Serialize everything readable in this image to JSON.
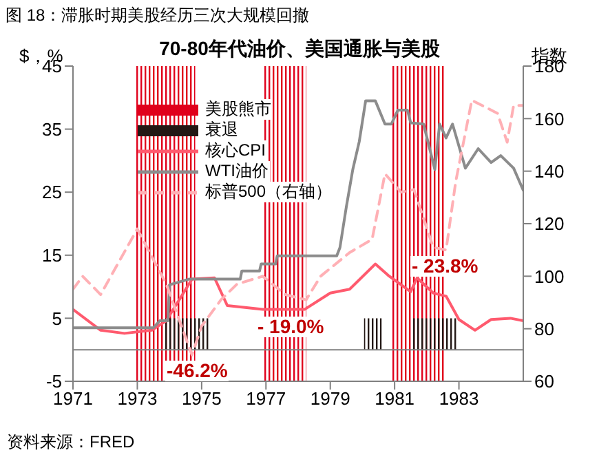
{
  "chart_data": {
    "type": "line",
    "title": "图 18：滞胀时期美股经历三次大规模回撤",
    "subtitle": "70-80年代油价、美国通胀与美股",
    "ylabel": "$，%",
    "y2label": "指数",
    "xlim": [
      1971,
      1985
    ],
    "xticks": [
      1971,
      1973,
      1975,
      1977,
      1979,
      1981,
      1983
    ],
    "ylim": [
      -5,
      45
    ],
    "yticks": [
      -5,
      5,
      15,
      25,
      35,
      45
    ],
    "y2lim": [
      60,
      180
    ],
    "y2ticks": [
      60,
      80,
      100,
      120,
      140,
      160,
      180
    ],
    "grid": false,
    "legend": "top left",
    "marker": "none",
    "bands": [
      {
        "axis": "x",
        "from": 1972.97,
        "to": 1974.8,
        "label": "美股熊市",
        "color": "#e0001b"
      },
      {
        "axis": "x",
        "from": 1976.9,
        "to": 1978.25,
        "color": "#e0001b"
      },
      {
        "axis": "x",
        "from": 1980.9,
        "to": 1982.6,
        "color": "#e0001b"
      }
    ],
    "ref_lines": [
      {
        "axis": "y",
        "value": 0,
        "color": "#808080"
      }
    ],
    "series": [
      {
        "name": "衰退",
        "type": "area",
        "color": "#231815",
        "x": [
          1973.8,
          1975.25,
          1975.26,
          1980.05,
          1980.6,
          1980.61,
          1981.55,
          1982.95
        ],
        "values": [
          5,
          5,
          null,
          5,
          5,
          null,
          5,
          5
        ]
      },
      {
        "name": "核心CPI",
        "color": "#ff5a6e",
        "line_style": "solid",
        "x": [
          1971.0,
          1971.86,
          1972.6,
          1973.45,
          1973.9,
          1974.7,
          1975.4,
          1975.8,
          1976.9,
          1978.2,
          1979.0,
          1979.6,
          1980.4,
          1980.8,
          1981.5,
          1981.7,
          1982.2,
          1982.6,
          1983.0,
          1983.5,
          1984.0,
          1984.6,
          1985.0
        ],
        "values": [
          6.4,
          3.1,
          2.6,
          3.1,
          4.6,
          11.2,
          11.4,
          7.0,
          6.4,
          6.4,
          9.0,
          9.6,
          13.6,
          11.8,
          9.2,
          11.4,
          9.0,
          8.5,
          4.8,
          3.1,
          4.8,
          5.0,
          4.6
        ]
      },
      {
        "name": "WTI油价",
        "type": "line",
        "color": "#8c8c8c",
        "line_style": "solid",
        "x": [
          1971.0,
          1973.5,
          1973.7,
          1973.95,
          1974.0,
          1974.6,
          1976.2,
          1976.25,
          1976.8,
          1976.85,
          1977.3,
          1977.35,
          1979.2,
          1979.3,
          1979.5,
          1979.7,
          1979.9,
          1980.1,
          1980.4,
          1980.7,
          1980.9,
          1981.1,
          1981.4,
          1981.5,
          1981.9,
          1982.25,
          1982.4,
          1982.6,
          1982.8,
          1983.2,
          1983.6,
          1984.0,
          1984.3,
          1984.7,
          1985.0
        ],
        "values": [
          3.5,
          3.5,
          4.6,
          4.6,
          10.3,
          11.2,
          11.2,
          12.5,
          12.5,
          13.6,
          13.6,
          14.9,
          14.9,
          16.2,
          22.7,
          28.6,
          33.0,
          39.5,
          39.5,
          35.8,
          35.8,
          38.0,
          38.0,
          36.0,
          35.8,
          28.6,
          35.8,
          33.6,
          35.8,
          28.8,
          31.9,
          29.7,
          30.8,
          28.8,
          25.3
        ]
      },
      {
        "name": "标普500（右轴）",
        "axis": "y2",
        "color": "#ffb0b5",
        "line_style": "dashed",
        "x": [
          1971.0,
          1971.3,
          1971.86,
          1973.0,
          1973.9,
          1974.7,
          1975.0,
          1975.6,
          1976.1,
          1976.9,
          1977.6,
          1978.25,
          1978.7,
          1979.6,
          1980.3,
          1980.7,
          1981.2,
          1981.6,
          1982.2,
          1982.6,
          1982.9,
          1983.4,
          1984.2,
          1984.5,
          1984.7,
          1985.0
        ],
        "values": [
          95,
          100,
          93,
          118,
          97,
          70,
          81,
          91,
          97,
          100,
          93,
          91,
          100,
          109,
          114,
          139,
          132,
          133,
          111,
          110,
          136,
          167,
          162,
          151,
          165,
          165
        ]
      }
    ],
    "annotations": [
      "-46.2%",
      "- 19.0%",
      "- 23.8%",
      "资料来源：FRED"
    ]
  }
}
